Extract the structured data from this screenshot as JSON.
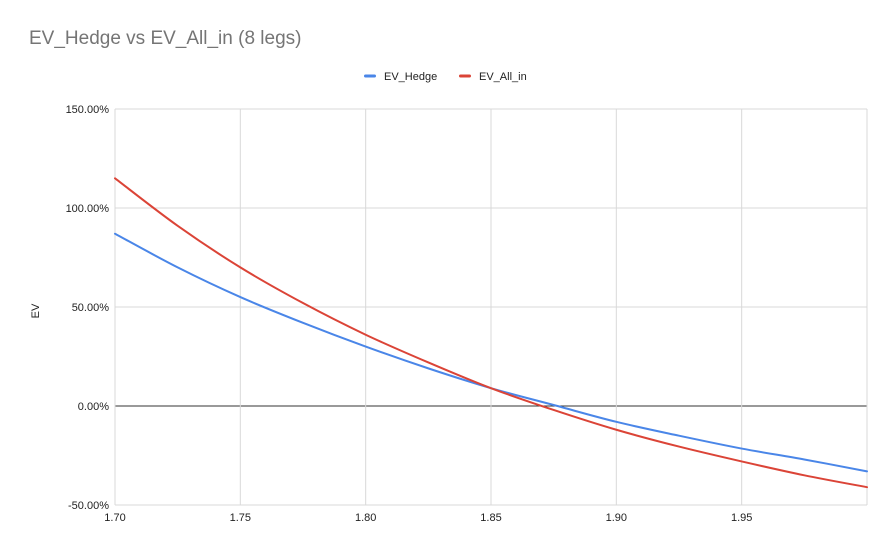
{
  "chart_data": {
    "type": "line",
    "title": "EV_Hedge vs EV_All_in (8 legs)",
    "xlabel": "",
    "ylabel": "EV",
    "xlim": [
      1.7,
      2.0
    ],
    "ylim": [
      -50,
      150
    ],
    "x_ticks": [
      {
        "value": 1.7,
        "label": "1.70"
      },
      {
        "value": 1.75,
        "label": "1.75"
      },
      {
        "value": 1.8,
        "label": "1.80"
      },
      {
        "value": 1.85,
        "label": "1.85"
      },
      {
        "value": 1.9,
        "label": "1.90"
      },
      {
        "value": 1.95,
        "label": "1.95"
      }
    ],
    "y_ticks": [
      {
        "value": 150,
        "label": "150.00%"
      },
      {
        "value": 100,
        "label": "100.00%"
      },
      {
        "value": 50,
        "label": "50.00%"
      },
      {
        "value": 0,
        "label": "0.00%"
      },
      {
        "value": -50,
        "label": "-50.00%"
      }
    ],
    "grid": true,
    "legend_position": "top-center",
    "x": [
      1.7,
      1.725,
      1.75,
      1.775,
      1.8,
      1.825,
      1.85,
      1.875,
      1.9,
      1.925,
      1.95,
      1.975,
      2.0
    ],
    "series": [
      {
        "name": "EV_Hedge",
        "color": "#4a86e8",
        "values": [
          87,
          70,
          55,
          42,
          30,
          19,
          9,
          0.5,
          -8,
          -15,
          -21.5,
          -27,
          -33
        ]
      },
      {
        "name": "EV_All_in",
        "color": "#db4437",
        "values": [
          115,
          91,
          70,
          52,
          36,
          22,
          9,
          -2,
          -12,
          -20.5,
          -28,
          -35,
          -41
        ]
      }
    ]
  }
}
